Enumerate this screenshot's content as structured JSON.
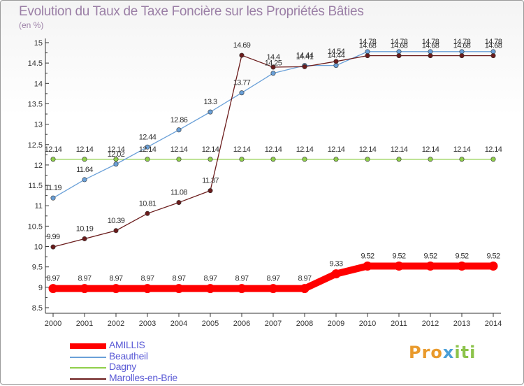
{
  "title": "Evolution du Taux de Taxe Foncière sur les Propriétés Bâties",
  "unit": "(en %)",
  "logo": {
    "parts": [
      "Pro",
      "x",
      "iti"
    ],
    "colors": [
      "#e99a2c",
      "#4a9fd8",
      "#8cc34a"
    ]
  },
  "chart_data": {
    "type": "line",
    "title": "Evolution du Taux de Taxe Foncière sur les Propriétés Bâties",
    "ylabel": "(en %)",
    "xlabel": "",
    "ylim": [
      8.5,
      15
    ],
    "yticks": [
      "8.5",
      "9",
      "9.5",
      "10",
      "10.5",
      "11",
      "11.5",
      "12",
      "12.5",
      "13",
      "13.5",
      "14",
      "14.5",
      "15"
    ],
    "grid": false,
    "categories": [
      "2000",
      "2001",
      "2002",
      "2003",
      "2004",
      "2005",
      "2006",
      "2007",
      "2008",
      "2009",
      "2010",
      "2011",
      "2012",
      "2013",
      "2014"
    ],
    "series": [
      {
        "name": "AMILLIS",
        "color": "#ff0000",
        "values": [
          8.97,
          8.97,
          8.97,
          8.97,
          8.97,
          8.97,
          8.97,
          8.97,
          8.97,
          9.33,
          9.52,
          9.52,
          9.52,
          9.52,
          9.52
        ]
      },
      {
        "name": "Beautheil",
        "color": "#6aa0d8",
        "values": [
          11.19,
          11.64,
          12.02,
          12.44,
          12.86,
          13.3,
          13.77,
          14.25,
          14.44,
          14.44,
          14.78,
          14.78,
          14.78,
          14.78,
          14.78
        ]
      },
      {
        "name": "Dagny",
        "color": "#8fcf4a",
        "values": [
          12.14,
          12.14,
          12.14,
          12.14,
          12.14,
          12.14,
          12.14,
          12.14,
          12.14,
          12.14,
          12.14,
          12.14,
          12.14,
          12.14,
          12.14
        ]
      },
      {
        "name": "Marolles-en-Brie",
        "color": "#6b1c1c",
        "values": [
          9.99,
          10.19,
          10.39,
          10.81,
          11.08,
          11.37,
          14.69,
          14.4,
          14.41,
          14.54,
          14.68,
          14.68,
          14.68,
          14.68,
          14.68
        ]
      }
    ],
    "labels": {
      "AMILLIS": [
        "8.97",
        "8.97",
        "8.97",
        "8.97",
        "8.97",
        "8.97",
        "8.97",
        "8.97",
        "8.97",
        "9.33",
        "9.52",
        "9.52",
        "9.52",
        "9.52",
        "9.52"
      ],
      "Beautheil": [
        "11.19",
        "11.64",
        "12.02",
        "12.44",
        "12.86",
        "13.3",
        "13.77",
        "14.25",
        "14.44",
        "14.44",
        "14.78",
        "14.78",
        "14.78",
        "14.78",
        "14.78"
      ],
      "Dagny": [
        "12.14",
        "12.14",
        "12.14",
        "12.14",
        "12.14",
        "12.14",
        "12.14",
        "12.14",
        "12.14",
        "12.14",
        "12.14",
        "12.14",
        "12.14",
        "12.14",
        "12.14"
      ],
      "Marolles-en-Brie": [
        "9.99",
        "10.19",
        "10.39",
        "10.81",
        "11.08",
        "11.37",
        "14.69",
        "14.4",
        "14.41",
        "14.54",
        "14.68",
        "14.68",
        "14.68",
        "14.68",
        "14.68"
      ]
    },
    "legend": [
      "AMILLIS",
      "Beautheil",
      "Dagny",
      "Marolles-en-Brie"
    ]
  }
}
